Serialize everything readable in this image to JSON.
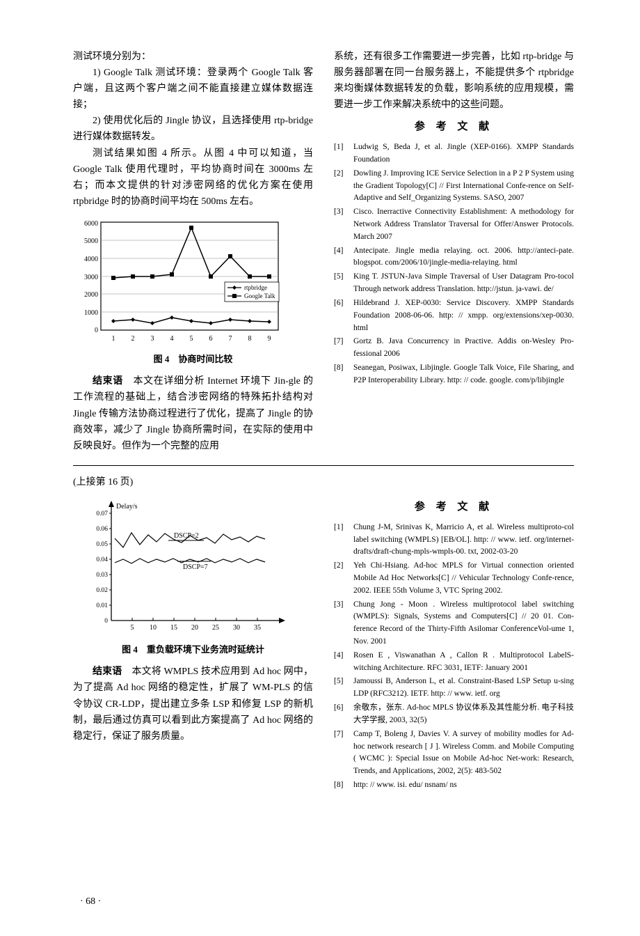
{
  "section1": {
    "left": {
      "p1": "测试环境分别为：",
      "p2": "1) Google Talk 测试环境：登录两个 Google Talk 客户端，且这两个客户端之间不能直接建立媒体数据连接；",
      "p3": "2) 使用优化后的 Jingle 协议，且选择使用 rtp-bridge 进行媒体数据转发。",
      "p4": "测试结果如图 4 所示。从图 4 中可以知道，当 Google Talk 使用代理时，平均协商时间在 3000ms 左右；而本文提供的针对涉密网络的优化方案在使用 rtpbridge 时的协商时间平均在 500ms 左右。",
      "chart1": {
        "type": "line",
        "title": "图 4　协商时间比较",
        "x_ticks": [
          "1",
          "2",
          "3",
          "4",
          "5",
          "6",
          "7",
          "8",
          "9"
        ],
        "y_ticks": [
          "0",
          "1000",
          "2000",
          "3000",
          "4000",
          "5000",
          "6000"
        ],
        "ylim": [
          0,
          6000
        ],
        "series": [
          {
            "name": "rtpbridge",
            "marker": "diamond",
            "color": "#000000",
            "values": [
              500,
              600,
              400,
              700,
              500,
              400,
              600,
              500,
              450
            ]
          },
          {
            "name": "Google Talk",
            "marker": "square",
            "color": "#000000",
            "values": [
              2900,
              3000,
              3000,
              3100,
              5700,
              3000,
              4100,
              3000,
              3000
            ]
          }
        ],
        "legend_labels": [
          "rtpbridge",
          "Google Talk"
        ],
        "axis_color": "#000000",
        "grid_color": "#808080"
      },
      "p5_bold": "结束语",
      "p5": "　本文在详细分析 Internet 环境下 Jin-gle 的工作流程的基础上，结合涉密网络的特殊拓扑结构对 Jingle 传输方法协商过程进行了优化，提高了 Jingle 的协商效率，减少了 Jingle 协商所需时间，在实际的使用中反映良好。但作为一个完整的应用"
    },
    "right": {
      "p1": "系统，还有很多工作需要进一步完善，比如 rtp-bridge 与服务器部署在同一台服务器上，不能提供多个 rtpbridge 来均衡媒体数据转发的负载，影响系统的应用规模，需要进一步工作来解决系统中的这些问题。",
      "ref_header": "参 考 文 献",
      "refs": [
        {
          "n": "[1]",
          "t": "Ludwig S, Beda J, et al. Jingle (XEP-0166). XMPP Standards Foundation"
        },
        {
          "n": "[2]",
          "t": "Dowling J. Improving ICE Service Selection in a P 2 P System using the Gradient Topology[C] // First International Confe-rence on Self-Adaptive and Self_Organizing Systems. SASO, 2007"
        },
        {
          "n": "[3]",
          "t": "Cisco. Inerractive Connectivity Establishment: A methodology for Network Address Translator Traversal for Offer/Answer Protocols. March 2007"
        },
        {
          "n": "[4]",
          "t": "Antecipate. Jingle media relaying. oct. 2006. http://anteci-pate. blogspot. com/2006/10/jingle-media-relaying. html"
        },
        {
          "n": "[5]",
          "t": "King T. JSTUN-Java Simple Traversal of User Datagram Pro-tocol Through network address Translation. http://jstun. ja-vawi. de/"
        },
        {
          "n": "[6]",
          "t": "Hildebrand J. XEP-0030: Service Discovery. XMPP Standards Foundation 2008-06-06. http: // xmpp. org/extensions/xep-0030. html"
        },
        {
          "n": "[7]",
          "t": "Gortz B. Java Concurrency in Practive. Addis on-Wesley Pro-fessional 2006"
        },
        {
          "n": "[8]",
          "t": "Seanegan, Posiwax, Libjingle. Google Talk Voice, File Sharing, and P2P Interoperability Library. http: // code. google. com/p/libjingle"
        }
      ]
    }
  },
  "section2": {
    "continued": "(上接第 16 页)",
    "left": {
      "chart2": {
        "type": "line",
        "title": "图 4　重负载环境下业务流时延统计",
        "ylabel": "Delay/s",
        "x_ticks": [
          "5",
          "10",
          "15",
          "20",
          "25",
          "30",
          "35"
        ],
        "y_ticks": [
          "0",
          "0.01",
          "0.02",
          "0.03",
          "0.04",
          "0.05",
          "0.06",
          "0.07"
        ],
        "ylim": [
          0,
          0.07
        ],
        "series": [
          {
            "name": "DSCP=2",
            "color": "#000000",
            "values": [
              0.053,
              0.046,
              0.058,
              0.049,
              0.055,
              0.05,
              0.057,
              0.052,
              0.054,
              0.051,
              0.056,
              0.049,
              0.053,
              0.055,
              0.05,
              0.054
            ]
          },
          {
            "name": "DSCP=7",
            "color": "#000000",
            "values": [
              0.038,
              0.04,
              0.037,
              0.04,
              0.038,
              0.04,
              0.039,
              0.04,
              0.038,
              0.04,
              0.039,
              0.04,
              0.038,
              0.04,
              0.039,
              0.04
            ]
          }
        ],
        "axis_color": "#000000"
      },
      "p1_bold": "结束语",
      "p1": "　本文将 WMPLS 技术应用到 Ad hoc 网中，为了提高 Ad hoc 网络的稳定性，扩展了 WM-PLS 的信令协议 CR-LDP，提出建立多条 LSP 和修复 LSP 的新机制，最后通过仿真可以看到此方案提高了 Ad hoc 网络的稳定行，保证了服务质量。"
    },
    "right": {
      "ref_header": "参 考 文 献",
      "refs": [
        {
          "n": "[1]",
          "t": "Chung J-M, Srinivas K, Marricio A, et al. Wireless multiproto-col label switching (WMPLS) [EB/OL]. http: // www. ietf. org/internet-drafts/draft-chung-mpls-wmpls-00. txt, 2002-03-20"
        },
        {
          "n": "[2]",
          "t": "Yeh Chi-Hsiang. Ad-hoc MPLS for Virtual connection oriented Mobile Ad Hoc Networks[C] // Vehicular Technology Confe-rence, 2002. IEEE 55th Volume 3, VTC Spring 2002."
        },
        {
          "n": "[3]",
          "t": "Chung Jong - Moon . Wireless multiprotocol label switching (WMPLS): Signals, Systems and Computers[C] // 20 01. Con-ference Record of the Thirty-Fifth Asilomar ConferenceVol-ume 1, Nov. 2001"
        },
        {
          "n": "[4]",
          "t": "Rosen E , Viswanathan A , Callon R . Multiprotocol LabelS-witching Architecture. RFC 3031, IETF: January 2001"
        },
        {
          "n": "[5]",
          "t": "Jamoussi B, Anderson L, et al. Constraint-Based LSP Setup u-sing LDP (RFC3212). IETF. http: // www. ietf. org"
        },
        {
          "n": "[6]",
          "t": "余敬东，张东. Ad-hoc MPLS 协议体系及其性能分析. 电子科技大学学报, 2003, 32(5)"
        },
        {
          "n": "[7]",
          "t": "Camp T, Boleng J, Davies V. A survey of mobility modles for Ad-hoc network research [ J ]. Wireless Comm. and Mobile Computing ( WCMC ): Special Issue on Mobile Ad-hoc Net-work: Research, Trends, and Applications, 2002, 2(5): 483-502"
        },
        {
          "n": "[8]",
          "t": "http: // www. isi. edu/ nsnam/ ns"
        }
      ]
    }
  },
  "page_number": "· 68 ·"
}
